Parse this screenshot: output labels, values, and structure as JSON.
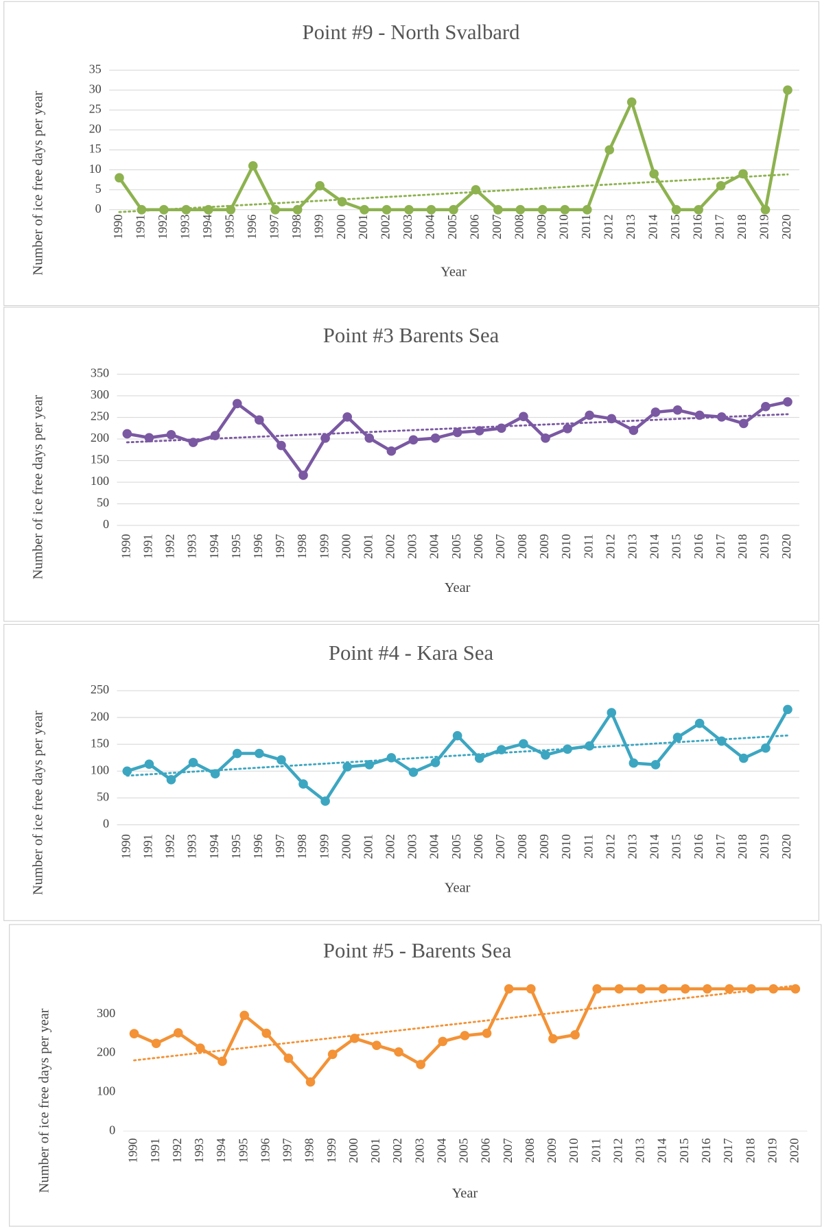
{
  "chart_data": [
    {
      "type": "line",
      "title": "Point #9 - North Svalbard",
      "x_label": "Year",
      "y_label": "Number of ice free days per year",
      "categories": [
        "1990",
        "1991",
        "1992",
        "1993",
        "1994",
        "1995",
        "1996",
        "1997",
        "1998",
        "1999",
        "2000",
        "2001",
        "2002",
        "2003",
        "2004",
        "2005",
        "2006",
        "2007",
        "2008",
        "2009",
        "2010",
        "2011",
        "2012",
        "2013",
        "2014",
        "2015",
        "2016",
        "2017",
        "2018",
        "2019",
        "2020"
      ],
      "series": [
        {
          "color": "#8db24f",
          "values": [
            8,
            0,
            0,
            0,
            0,
            0,
            11,
            0,
            0,
            6,
            2,
            0,
            0,
            0,
            0,
            0,
            5,
            0,
            0,
            0,
            0,
            0,
            15,
            27,
            9,
            0,
            0,
            6,
            9,
            0,
            30
          ]
        }
      ],
      "ylim": [
        0,
        35
      ],
      "yticks": [
        0,
        5,
        10,
        15,
        20,
        25,
        30,
        35
      ],
      "grid": true,
      "trendline": true
    },
    {
      "type": "line",
      "title": "Point #3 Barents Sea",
      "x_label": "Year",
      "y_label": "Number of ice free days per year",
      "categories": [
        "1990",
        "1991",
        "1992",
        "1993",
        "1994",
        "1995",
        "1996",
        "1997",
        "1998",
        "1999",
        "2000",
        "2001",
        "2002",
        "2003",
        "2004",
        "2005",
        "2006",
        "2007",
        "2008",
        "2009",
        "2010",
        "2011",
        "2012",
        "2013",
        "2014",
        "2015",
        "2016",
        "2017",
        "2018",
        "2019",
        "2020"
      ],
      "series": [
        {
          "color": "#7a58a2",
          "values": [
            212,
            203,
            210,
            192,
            208,
            282,
            244,
            185,
            116,
            202,
            251,
            202,
            172,
            198,
            202,
            215,
            219,
            225,
            252,
            202,
            224,
            255,
            247,
            220,
            262,
            267,
            255,
            251,
            236,
            275,
            286
          ]
        }
      ],
      "ylim": [
        0,
        350
      ],
      "yticks": [
        0,
        50,
        100,
        150,
        200,
        250,
        300,
        350
      ],
      "grid": true,
      "trendline": true
    },
    {
      "type": "line",
      "title": "Point #4 - Kara Sea",
      "x_label": "Year",
      "y_label": "Number of ice free days per year",
      "categories": [
        "1990",
        "1991",
        "1992",
        "1993",
        "1994",
        "1995",
        "1996",
        "1997",
        "1998",
        "1999",
        "2000",
        "2001",
        "2002",
        "2003",
        "2004",
        "2005",
        "2006",
        "2007",
        "2008",
        "2009",
        "2010",
        "2011",
        "2012",
        "2013",
        "2014",
        "2015",
        "2016",
        "2017",
        "2018",
        "2019",
        "2020"
      ],
      "series": [
        {
          "color": "#3ca6c1",
          "values": [
            100,
            113,
            84,
            116,
            95,
            133,
            133,
            121,
            76,
            44,
            108,
            112,
            125,
            98,
            116,
            166,
            124,
            140,
            151,
            130,
            141,
            147,
            209,
            115,
            112,
            163,
            189,
            156,
            124,
            143,
            215
          ]
        }
      ],
      "ylim": [
        0,
        250
      ],
      "yticks": [
        0,
        50,
        100,
        150,
        200,
        250
      ],
      "grid": true,
      "trendline": true
    },
    {
      "type": "line",
      "title": "Point #5 - Barents Sea",
      "x_label": "Year",
      "y_label": "Number of ice free days per year",
      "categories": [
        "1990",
        "1991",
        "1992",
        "1993",
        "1994",
        "1995",
        "1996",
        "1997",
        "1998",
        "1999",
        "2000",
        "2001",
        "2002",
        "2003",
        "2004",
        "2005",
        "2006",
        "2007",
        "2008",
        "2009",
        "2010",
        "2011",
        "2012",
        "2013",
        "2014",
        "2015",
        "2016",
        "2017",
        "2018",
        "2019",
        "2020"
      ],
      "series": [
        {
          "color": "#f39236",
          "values": [
            250,
            225,
            252,
            213,
            179,
            297,
            251,
            187,
            126,
            197,
            238,
            220,
            203,
            171,
            230,
            245,
            251,
            365,
            365,
            237,
            247,
            365,
            365,
            365,
            365,
            365,
            365,
            365,
            365,
            365,
            365
          ]
        }
      ],
      "ylim": [
        0,
        380
      ],
      "yticks": [
        0,
        100,
        200,
        300
      ],
      "grid": false,
      "trendline": true
    }
  ]
}
